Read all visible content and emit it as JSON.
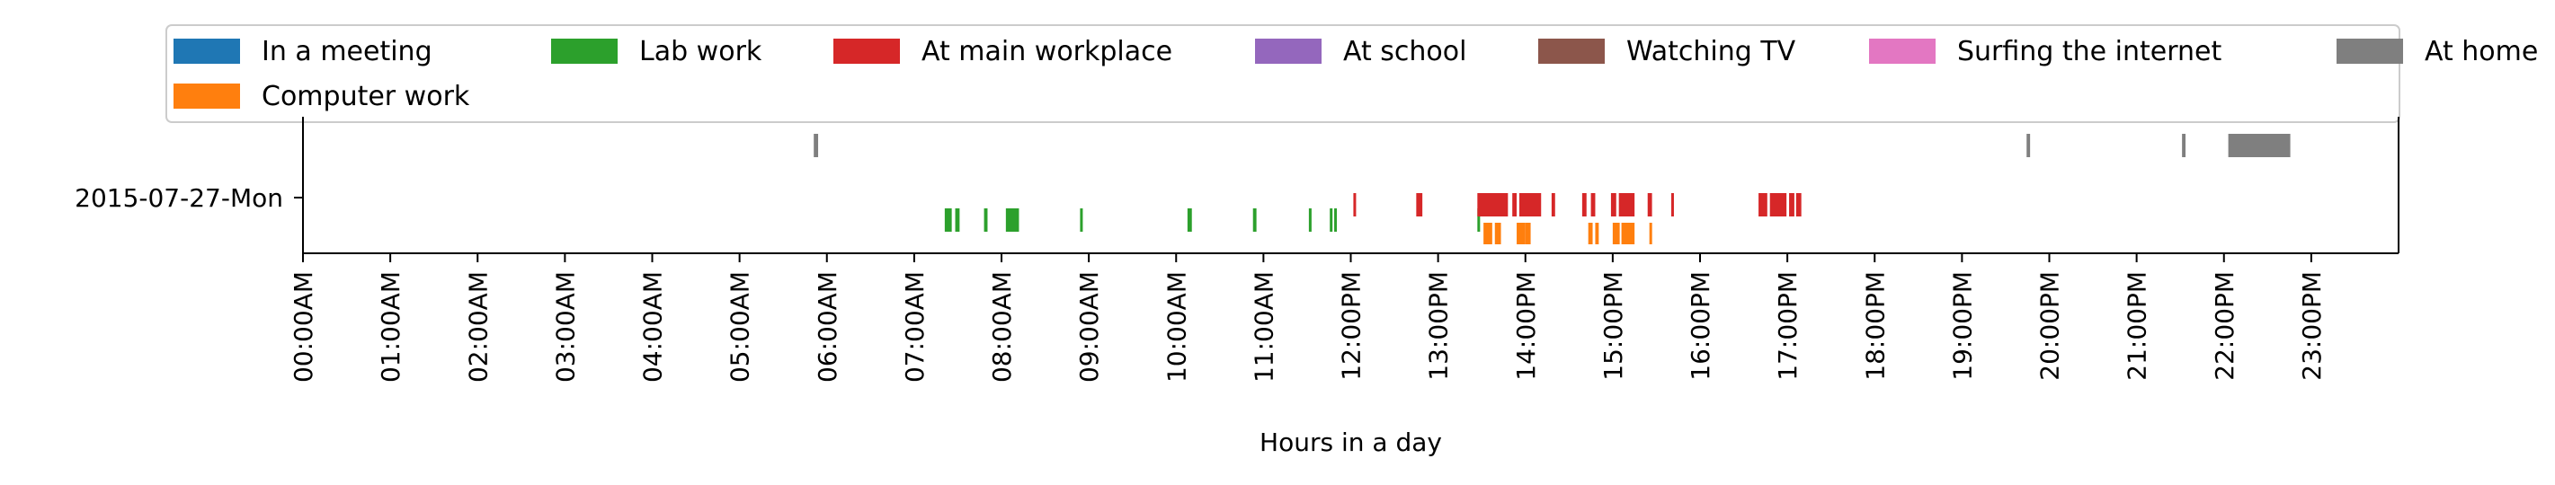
{
  "chart_data": {
    "type": "timeline",
    "xlabel": "Hours in a day",
    "ylabel": "",
    "xlim": [
      0,
      24
    ],
    "grid": false,
    "legend_placement": "top",
    "row_label": "2015-07-27-Mon",
    "x_ticks": [
      {
        "hour": 0,
        "label": "00:00AM"
      },
      {
        "hour": 1,
        "label": "01:00AM"
      },
      {
        "hour": 2,
        "label": "02:00AM"
      },
      {
        "hour": 3,
        "label": "03:00AM"
      },
      {
        "hour": 4,
        "label": "04:00AM"
      },
      {
        "hour": 5,
        "label": "05:00AM"
      },
      {
        "hour": 6,
        "label": "06:00AM"
      },
      {
        "hour": 7,
        "label": "07:00AM"
      },
      {
        "hour": 8,
        "label": "08:00AM"
      },
      {
        "hour": 9,
        "label": "09:00AM"
      },
      {
        "hour": 10,
        "label": "10:00AM"
      },
      {
        "hour": 11,
        "label": "11:00AM"
      },
      {
        "hour": 12,
        "label": "12:00PM"
      },
      {
        "hour": 13,
        "label": "13:00PM"
      },
      {
        "hour": 14,
        "label": "14:00PM"
      },
      {
        "hour": 15,
        "label": "15:00PM"
      },
      {
        "hour": 16,
        "label": "16:00PM"
      },
      {
        "hour": 17,
        "label": "17:00PM"
      },
      {
        "hour": 18,
        "label": "18:00PM"
      },
      {
        "hour": 19,
        "label": "19:00PM"
      },
      {
        "hour": 20,
        "label": "20:00PM"
      },
      {
        "hour": 21,
        "label": "21:00PM"
      },
      {
        "hour": 22,
        "label": "22:00PM"
      },
      {
        "hour": 23,
        "label": "23:00PM"
      }
    ],
    "series": [
      {
        "name": "In a meeting",
        "color": "#1f77b4",
        "lane": 3,
        "intervals": []
      },
      {
        "name": "Computer work",
        "color": "#ff7f0e",
        "lane": 5,
        "intervals": [
          [
            13.52,
            13.62
          ],
          [
            13.65,
            13.72
          ],
          [
            13.9,
            14.0
          ],
          [
            14.0,
            14.06
          ],
          [
            14.72,
            14.77
          ],
          [
            14.8,
            14.84
          ],
          [
            15.0,
            15.08
          ],
          [
            15.1,
            15.25
          ],
          [
            15.42,
            15.45
          ]
        ]
      },
      {
        "name": "Lab work",
        "color": "#2ca02c",
        "lane": 4,
        "intervals": [
          [
            7.35,
            7.43
          ],
          [
            7.47,
            7.52
          ],
          [
            7.8,
            7.84
          ],
          [
            8.05,
            8.2
          ],
          [
            8.9,
            8.93
          ],
          [
            10.13,
            10.18
          ],
          [
            10.88,
            10.92
          ],
          [
            11.52,
            11.55
          ],
          [
            11.76,
            11.79
          ],
          [
            11.81,
            11.84
          ],
          [
            13.45,
            13.48
          ]
        ]
      },
      {
        "name": "At main workplace",
        "color": "#d62728",
        "lane": 3,
        "intervals": [
          [
            12.03,
            12.06
          ],
          [
            12.75,
            12.82
          ],
          [
            13.45,
            13.8
          ],
          [
            13.85,
            13.9
          ],
          [
            13.93,
            14.18
          ],
          [
            14.3,
            14.34
          ],
          [
            14.65,
            14.7
          ],
          [
            14.75,
            14.8
          ],
          [
            14.98,
            15.04
          ],
          [
            15.07,
            15.25
          ],
          [
            15.4,
            15.45
          ],
          [
            15.67,
            15.7
          ],
          [
            16.67,
            16.77
          ],
          [
            16.8,
            16.99
          ],
          [
            17.02,
            17.08
          ],
          [
            17.1,
            17.16
          ]
        ]
      },
      {
        "name": "At school",
        "color": "#9467bd",
        "lane": 3,
        "intervals": []
      },
      {
        "name": "Watching TV",
        "color": "#8c564b",
        "lane": 3,
        "intervals": []
      },
      {
        "name": "Surfing the internet",
        "color": "#e377c2",
        "lane": 3,
        "intervals": []
      },
      {
        "name": "At home",
        "color": "#7f7f7f",
        "lane": 1,
        "intervals": [
          [
            5.85,
            5.9
          ],
          [
            19.74,
            19.78
          ],
          [
            21.52,
            21.56
          ],
          [
            22.05,
            22.76
          ]
        ]
      }
    ]
  }
}
